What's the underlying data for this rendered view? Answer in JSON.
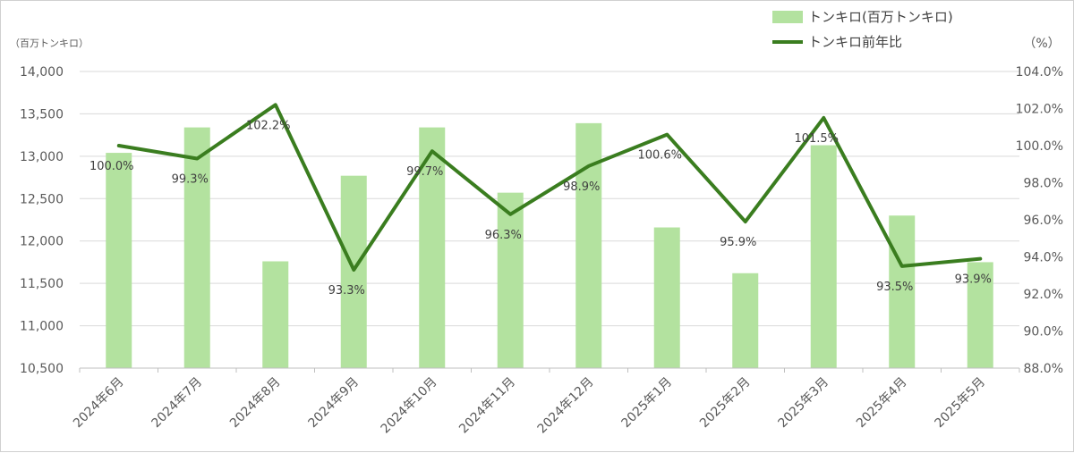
{
  "chart_data": {
    "type": "bar",
    "categories": [
      "2024年6月",
      "2024年7月",
      "2024年8月",
      "2024年9月",
      "2024年10月",
      "2024年11月",
      "2024年12月",
      "2025年1月",
      "2025年2月",
      "2025年3月",
      "2025年4月",
      "2025年5月"
    ],
    "series": [
      {
        "name": "トンキロ(百万トンキロ)",
        "type": "bar",
        "axis": "left",
        "color": "#b3e29f",
        "values": [
          13040,
          13340,
          11760,
          12770,
          13340,
          12570,
          13390,
          12160,
          11620,
          13130,
          12300,
          11750
        ]
      },
      {
        "name": "トンキロ前年比",
        "type": "line",
        "axis": "right",
        "color": "#3a7d1f",
        "values": [
          100.0,
          99.3,
          102.2,
          93.3,
          99.7,
          96.3,
          98.9,
          100.6,
          95.9,
          101.5,
          93.5,
          93.9
        ],
        "labels": [
          "100.0%",
          "99.3%",
          "102.2%",
          "93.3%",
          "99.7%",
          "96.3%",
          "98.9%",
          "100.6%",
          "95.9%",
          "101.5%",
          "93.5%",
          "93.9%"
        ]
      }
    ],
    "left_axis": {
      "unit": "（百万トンキロ）",
      "ylim": [
        10500,
        14000
      ],
      "ticks": [
        "10,500",
        "11,000",
        "11,500",
        "12,000",
        "12,500",
        "13,000",
        "13,500",
        "14,000"
      ],
      "tick_values": [
        10500,
        11000,
        11500,
        12000,
        12500,
        13000,
        13500,
        14000
      ]
    },
    "right_axis": {
      "unit": "（%）",
      "ylim": [
        88,
        104
      ],
      "ticks": [
        "88.0%",
        "90.0%",
        "92.0%",
        "94.0%",
        "96.0%",
        "98.0%",
        "100.0%",
        "102.0%",
        "104.0%"
      ],
      "tick_values": [
        88,
        90,
        92,
        94,
        96,
        98,
        100,
        102,
        104
      ]
    },
    "legend": {
      "position": "top-right",
      "items": [
        "トンキロ(百万トンキロ)",
        "トンキロ前年比"
      ]
    },
    "grid": true
  }
}
